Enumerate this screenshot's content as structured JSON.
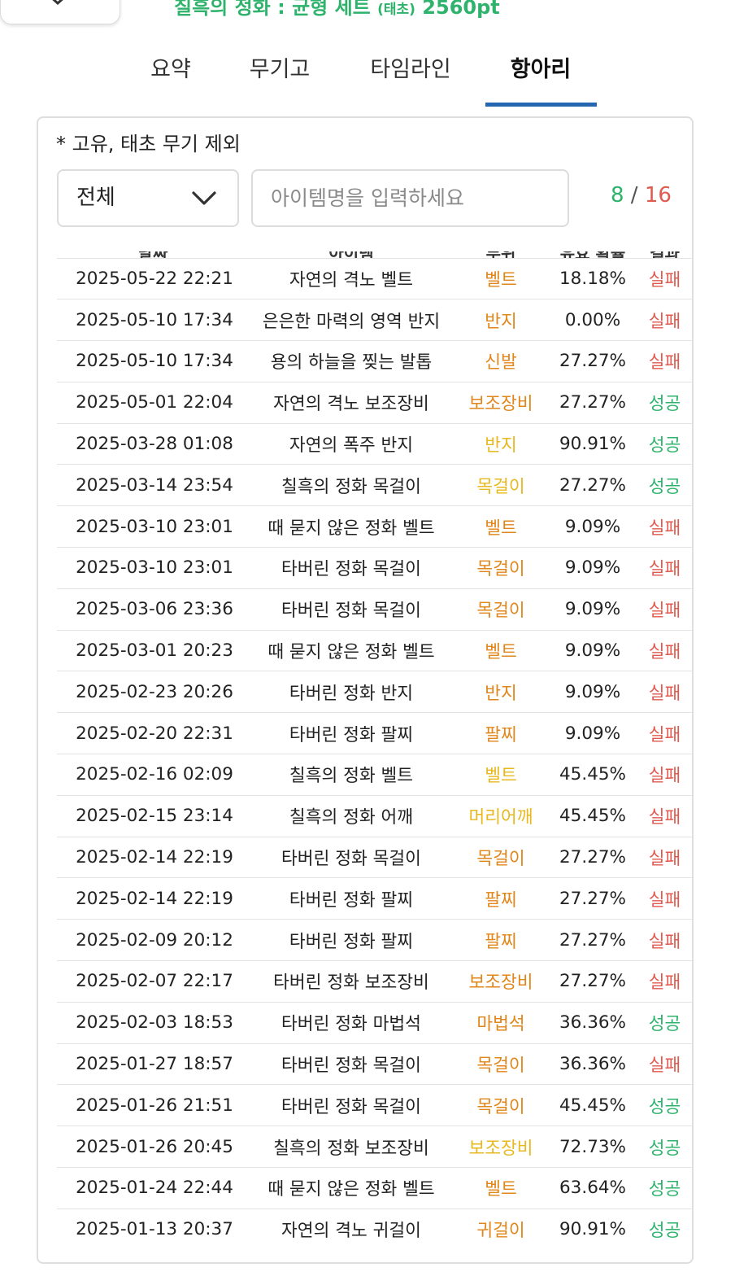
{
  "page_title": {
    "main": "칠흑의 정화 : 균형 세트 ",
    "small": "(태초)",
    "points": " 2560pt"
  },
  "tabs": [
    {
      "label": "요약"
    },
    {
      "label": "무기고"
    },
    {
      "label": "타임라인"
    },
    {
      "label": "항아리"
    }
  ],
  "note": "* 고유, 태초 무기 제외",
  "filter": {
    "selected": "전체"
  },
  "search": {
    "placeholder": "아이템명을 입력하세요",
    "value": ""
  },
  "counter": {
    "current": "8",
    "separator": " / ",
    "total": "16"
  },
  "table": {
    "headers": [
      "날짜",
      "아이템",
      "부위",
      "유효 확률",
      "결과"
    ],
    "rows": [
      {
        "date": "2025-05-22 22:21",
        "item": "자연의 격노 벨트",
        "part": "벨트",
        "rate": "18.18%",
        "result": "실패"
      },
      {
        "date": "2025-05-10 17:34",
        "item": "은은한 마력의 영역 반지",
        "part": "반지",
        "rate": "0.00%",
        "result": "실패"
      },
      {
        "date": "2025-05-10 17:34",
        "item": "용의 하늘을 찢는 발톱",
        "part": "신발",
        "rate": "27.27%",
        "result": "실패"
      },
      {
        "date": "2025-05-01 22:04",
        "item": "자연의 격노 보조장비",
        "part": "보조장비",
        "rate": "27.27%",
        "result": "성공"
      },
      {
        "date": "2025-03-28 01:08",
        "item": "자연의 폭주 반지",
        "part": "반지",
        "rate": "90.91%",
        "result": "성공"
      },
      {
        "date": "2025-03-14 23:54",
        "item": "칠흑의 정화 목걸이",
        "part": "목걸이",
        "rate": "27.27%",
        "result": "성공"
      },
      {
        "date": "2025-03-10 23:01",
        "item": "때 묻지 않은 정화 벨트",
        "part": "벨트",
        "rate": "9.09%",
        "result": "실패"
      },
      {
        "date": "2025-03-10 23:01",
        "item": "타버린 정화 목걸이",
        "part": "목걸이",
        "rate": "9.09%",
        "result": "실패"
      },
      {
        "date": "2025-03-06 23:36",
        "item": "타버린 정화 목걸이",
        "part": "목걸이",
        "rate": "9.09%",
        "result": "실패"
      },
      {
        "date": "2025-03-01 20:23",
        "item": "때 묻지 않은 정화 벨트",
        "part": "벨트",
        "rate": "9.09%",
        "result": "실패"
      },
      {
        "date": "2025-02-23 20:26",
        "item": "타버린 정화 반지",
        "part": "반지",
        "rate": "9.09%",
        "result": "실패"
      },
      {
        "date": "2025-02-20 22:31",
        "item": "타버린 정화 팔찌",
        "part": "팔찌",
        "rate": "9.09%",
        "result": "실패"
      },
      {
        "date": "2025-02-16 02:09",
        "item": "칠흑의 정화 벨트",
        "part": "벨트",
        "rate": "45.45%",
        "result": "실패"
      },
      {
        "date": "2025-02-15 23:14",
        "item": "칠흑의 정화 어깨",
        "part": "머리어깨",
        "rate": "45.45%",
        "result": "실패"
      },
      {
        "date": "2025-02-14 22:19",
        "item": "타버린 정화 목걸이",
        "part": "목걸이",
        "rate": "27.27%",
        "result": "실패"
      },
      {
        "date": "2025-02-14 22:19",
        "item": "타버린 정화 팔찌",
        "part": "팔찌",
        "rate": "27.27%",
        "result": "실패"
      },
      {
        "date": "2025-02-09 20:12",
        "item": "타버린 정화 팔찌",
        "part": "팔찌",
        "rate": "27.27%",
        "result": "실패"
      },
      {
        "date": "2025-02-07 22:17",
        "item": "타버린 정화 보조장비",
        "part": "보조장비",
        "rate": "27.27%",
        "result": "실패"
      },
      {
        "date": "2025-02-03 18:53",
        "item": "타버린 정화 마법석",
        "part": "마법석",
        "rate": "36.36%",
        "result": "성공"
      },
      {
        "date": "2025-01-27 18:57",
        "item": "타버린 정화 목걸이",
        "part": "목걸이",
        "rate": "36.36%",
        "result": "실패"
      },
      {
        "date": "2025-01-26 21:51",
        "item": "타버린 정화 목걸이",
        "part": "목걸이",
        "rate": "45.45%",
        "result": "성공"
      },
      {
        "date": "2025-01-26 20:45",
        "item": "칠흑의 정화 보조장비",
        "part": "보조장비",
        "rate": "72.73%",
        "result": "성공"
      },
      {
        "date": "2025-01-24 22:44",
        "item": "때 묻지 않은 정화 벨트",
        "part": "벨트",
        "rate": "63.64%",
        "result": "성공"
      },
      {
        "date": "2025-01-13 20:37",
        "item": "자연의 격노 귀걸이",
        "part": "귀걸이",
        "rate": "90.91%",
        "result": "성공"
      }
    ]
  },
  "colors": {
    "accent_green": "#2fb36c",
    "fail_red": "#e05a4f",
    "tab_underline": "#2566b0",
    "part_orange": "#e0861a",
    "part_yellow": "#e8b81e"
  },
  "part_colors": {
    "벨트": "#e0861a",
    "반지": "#e0861a",
    "신발": "#e0861a",
    "보조장비": "#e0861a",
    "목걸이": "#e0861a",
    "팔찌": "#e0861a",
    "마법석": "#e0861a",
    "귀걸이": "#e0861a",
    "머리어깨": "#e8b81e"
  },
  "yellow_rows": [
    4,
    5,
    12,
    13,
    21
  ]
}
